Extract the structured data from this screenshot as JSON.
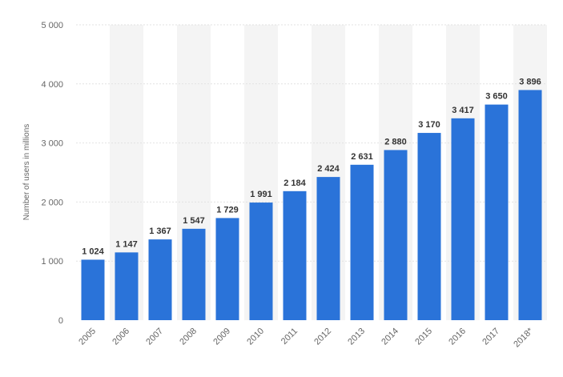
{
  "chart_data": {
    "type": "bar",
    "categories": [
      "2005",
      "2006",
      "2007",
      "2008",
      "2009",
      "2010",
      "2011",
      "2012",
      "2013",
      "2014",
      "2015",
      "2016",
      "2017",
      "2018*"
    ],
    "series": [
      {
        "values": [
          1024,
          1147,
          1367,
          1547,
          1729,
          1991,
          2184,
          2424,
          2631,
          2880,
          3170,
          3417,
          3650,
          3896
        ]
      }
    ],
    "data_labels": [
      "1 024",
      "1 147",
      "1 367",
      "1 547",
      "1 729",
      "1 991",
      "2 184",
      "2 424",
      "2 631",
      "2 880",
      "3 170",
      "3 417",
      "3 650",
      "3 896"
    ],
    "title": "",
    "xlabel": "",
    "ylabel": "Number of users in millions",
    "ylim": [
      0,
      5000
    ],
    "y_ticks": [
      0,
      1000,
      2000,
      3000,
      4000,
      5000
    ],
    "y_tick_labels": [
      "0",
      "1 000",
      "2 000",
      "3 000",
      "4 000",
      "5 000"
    ],
    "grid": true,
    "legend": "none",
    "colors": {
      "bar": "#2a73d9",
      "alt_band": "#f4f4f4",
      "grid": "#e2e2e2"
    }
  }
}
